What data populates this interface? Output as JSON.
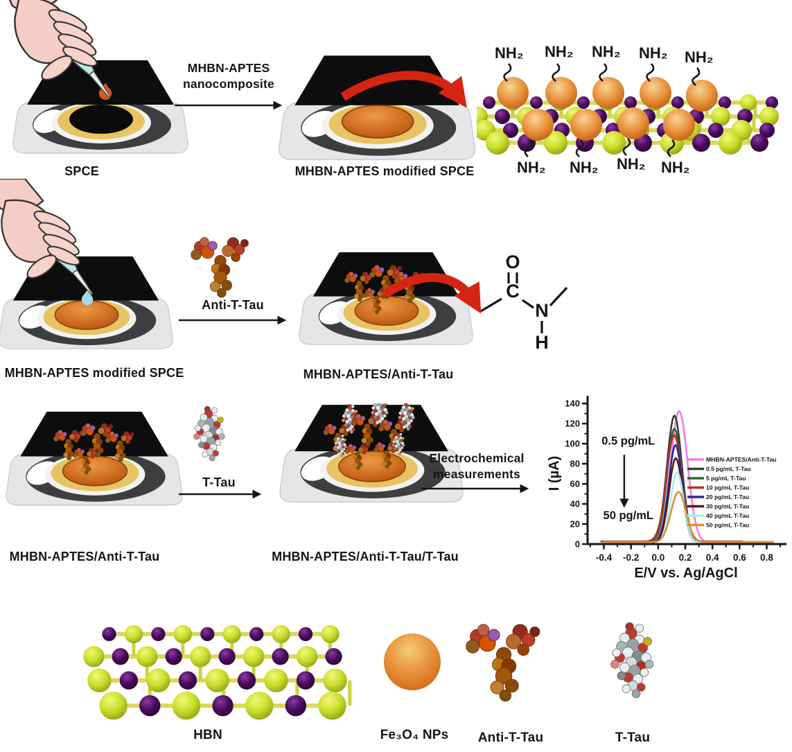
{
  "colors": {
    "lime_sphere": "#c9dd2b",
    "purple_sphere": "#4a0a5c",
    "orange_nanoparticle": "#e8913c",
    "electrode_disc_orange": "#c9651c",
    "electrode_top_black": "#0d0d0d",
    "yellow_ring": "#e7c363",
    "red_arrow": "#d62413",
    "drop_row1": "#d4581e",
    "drop_row2": "#a5d6e8"
  },
  "row1": {
    "electrode_spce_label": "SPCE",
    "arrow_label_line1": "MHBN-APTES",
    "arrow_label_line2": "nanocomposite",
    "electrode_modified_label": "MHBN-APTES modified SPCE",
    "nh2_label": "NH₂"
  },
  "row2": {
    "electrode_modified_label": "MHBN-APTES modified SPCE",
    "arrow_label": "Anti-T-Tau",
    "electrode_antibody_label": "MHBN-APTES/Anti-T-Tau",
    "amide_o": "O",
    "amide_c": "C",
    "amide_n": "N",
    "amide_h": "H"
  },
  "row3": {
    "electrode_antibody_label": "MHBN-APTES/Anti-T-Tau",
    "arrow_label": "T-Tau",
    "electrode_ttau_label": "MHBN-APTES/Anti-T-Tau/T-Tau",
    "arrow2_label_line1": "Electrochemical",
    "arrow2_label_line2": "measurements"
  },
  "legend_row": {
    "hbn_label": "HBN",
    "fe3o4_label": "Fe₃O₄ NPs",
    "antibody_label": "Anti-T-Tau",
    "ttau_label": "T-Tau"
  },
  "chart_data": {
    "type": "line",
    "title": "",
    "xlabel": "E/V vs. Ag/AgCl",
    "ylabel": "I (µA)",
    "xlim": [
      -0.52,
      0.92
    ],
    "ylim": [
      0,
      145
    ],
    "xticks": [
      -0.4,
      -0.2,
      0.0,
      0.2,
      0.4,
      0.6,
      0.8
    ],
    "yticks": [
      0,
      20,
      40,
      60,
      80,
      100,
      120,
      140
    ],
    "grid": false,
    "legend_position": "right-inside",
    "annotations": [
      {
        "text": "0.5 pg/mL",
        "color": "#3f3f3f",
        "x": -0.22,
        "y": 99
      },
      {
        "text": "50 pg/mL",
        "color": "#e0862f",
        "x": -0.22,
        "y": 25
      },
      {
        "arrow": {
          "x": -0.25,
          "y_from": 89,
          "y_to": 38
        }
      }
    ],
    "series": [
      {
        "name": "MHBN-APTES/Anti-T-Tau",
        "color": "#ef7fe4",
        "peak_x": 0.155,
        "peak_y": 131,
        "sigma": 0.062,
        "baseline": 1.5,
        "x_start": -0.03,
        "x_end": 0.46
      },
      {
        "name": "0.5 pg/mL T-Tau",
        "color": "#3b3b3b",
        "peak_x": 0.12,
        "peak_y": 126,
        "sigma": 0.055,
        "baseline": 2.0,
        "x_start": -0.07,
        "x_end": 0.56
      },
      {
        "name": "5 pg/mL T-Tau",
        "color": "#2d6a33",
        "peak_x": 0.12,
        "peak_y": 113,
        "sigma": 0.053,
        "baseline": 2.0,
        "x_start": -0.06,
        "x_end": 0.85
      },
      {
        "name": "10 pg/mL T-Tau",
        "color": "#b23425",
        "peak_x": 0.118,
        "peak_y": 106,
        "sigma": 0.057,
        "baseline": 2.6,
        "x_start": -0.42,
        "x_end": 0.62
      },
      {
        "name": "20 pg/mL T-Tau",
        "color": "#28289e",
        "peak_x": 0.128,
        "peak_y": 97,
        "sigma": 0.05,
        "baseline": 1.5,
        "x_start": -0.04,
        "x_end": 0.38
      },
      {
        "name": "30 pg/mL T-Tau",
        "color": "#5c1818",
        "peak_x": 0.13,
        "peak_y": 84,
        "sigma": 0.05,
        "baseline": 1.5,
        "x_start": -0.04,
        "x_end": 0.4
      },
      {
        "name": "40 pg/mL T-Tau",
        "color": "#a4efec",
        "peak_x": 0.14,
        "peak_y": 70,
        "sigma": 0.048,
        "baseline": 1.5,
        "x_start": -0.01,
        "x_end": 0.46
      },
      {
        "name": "50 pg/mL T-Tau",
        "color": "#dd8f3d",
        "peak_x": 0.15,
        "peak_y": 50,
        "sigma": 0.055,
        "baseline": 2.0,
        "x_start": -0.4,
        "x_end": 0.85
      }
    ]
  }
}
